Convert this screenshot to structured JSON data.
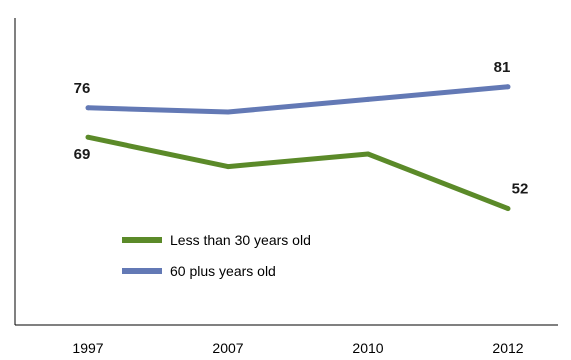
{
  "chart_data": {
    "type": "line",
    "title": "",
    "xlabel": "",
    "ylabel": "",
    "categories": [
      "1997",
      "2007",
      "2010",
      "2012"
    ],
    "ylim": [
      0,
      100
    ],
    "grid": false,
    "legend": "bottom-left",
    "series": [
      {
        "name": "Less than 30 years old",
        "values": [
          69,
          62,
          65,
          52
        ],
        "color": "#5b8a29",
        "labels": [
          "69",
          "",
          "",
          "52"
        ]
      },
      {
        "name": "60 plus years old",
        "values": [
          76,
          75,
          78,
          81
        ],
        "color": "#6379b5",
        "labels": [
          "76",
          "",
          "",
          "81"
        ]
      }
    ]
  }
}
